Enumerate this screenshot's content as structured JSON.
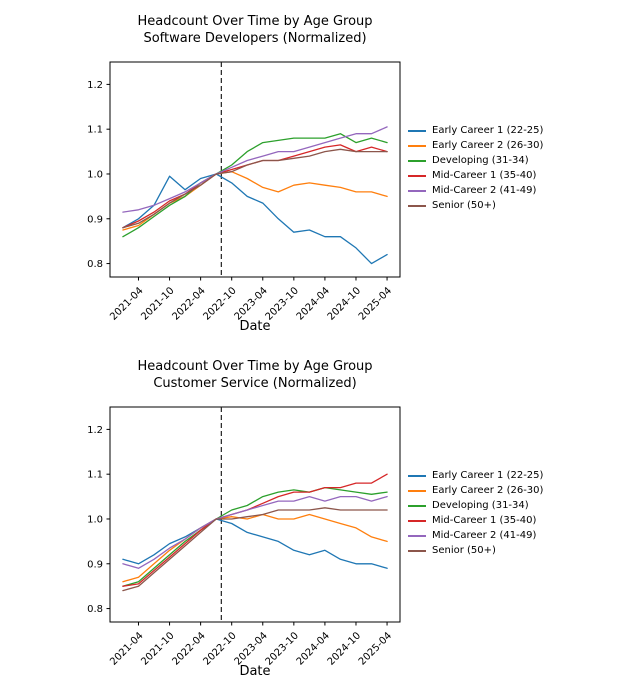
{
  "chart_data": [
    {
      "type": "line",
      "title_line1": "Headcount Over Time by Age Group",
      "title_line2": "Software Developers (Normalized)",
      "xlabel": "Date",
      "ylabel": "",
      "ylim": [
        0.77,
        1.25
      ],
      "yticks": [
        0.8,
        0.9,
        1.0,
        1.1,
        1.2
      ],
      "xtick_labels": [
        "2021-04",
        "2021-10",
        "2022-04",
        "2022-10",
        "2023-04",
        "2023-10",
        "2024-04",
        "2024-10",
        "2025-04"
      ],
      "xtick_months": [
        3,
        9,
        15,
        21,
        27,
        33,
        39,
        45,
        51
      ],
      "x_months": [
        0,
        3,
        6,
        9,
        12,
        15,
        18,
        21,
        24,
        27,
        30,
        33,
        36,
        39,
        42,
        45,
        48,
        51
      ],
      "xlim_months": [
        -2.5,
        53.5
      ],
      "vline_month": 19,
      "vline_style": "dashed",
      "grid": false,
      "legend_position": "right-outside",
      "series": [
        {
          "name": "Early Career 1 (22-25)",
          "color": "#1f77b4",
          "values": [
            0.88,
            0.9,
            0.93,
            0.995,
            0.965,
            0.99,
            1.0,
            0.98,
            0.95,
            0.935,
            0.9,
            0.87,
            0.875,
            0.86,
            0.86,
            0.835,
            0.8,
            0.82
          ]
        },
        {
          "name": "Early Career 2 (26-30)",
          "color": "#ff7f0e",
          "values": [
            0.875,
            0.885,
            0.91,
            0.935,
            0.95,
            0.975,
            1.0,
            1.005,
            0.99,
            0.97,
            0.96,
            0.975,
            0.98,
            0.975,
            0.97,
            0.96,
            0.96,
            0.95
          ]
        },
        {
          "name": "Developing (31-34)",
          "color": "#2ca02c",
          "values": [
            0.86,
            0.88,
            0.905,
            0.93,
            0.95,
            0.98,
            1.0,
            1.02,
            1.05,
            1.07,
            1.075,
            1.08,
            1.08,
            1.08,
            1.09,
            1.07,
            1.08,
            1.07
          ]
        },
        {
          "name": "Mid-Career 1 (35-40)",
          "color": "#d62728",
          "values": [
            0.88,
            0.895,
            0.915,
            0.94,
            0.955,
            0.98,
            1.0,
            1.01,
            1.02,
            1.03,
            1.03,
            1.04,
            1.05,
            1.06,
            1.065,
            1.05,
            1.06,
            1.05
          ]
        },
        {
          "name": "Mid-Career 2 (41-49)",
          "color": "#9467bd",
          "values": [
            0.915,
            0.92,
            0.93,
            0.945,
            0.96,
            0.98,
            1.0,
            1.015,
            1.03,
            1.04,
            1.05,
            1.05,
            1.06,
            1.07,
            1.08,
            1.09,
            1.09,
            1.105
          ]
        },
        {
          "name": "Senior (50+)",
          "color": "#8c564b",
          "values": [
            0.88,
            0.89,
            0.91,
            0.935,
            0.955,
            0.975,
            1.0,
            1.005,
            1.02,
            1.03,
            1.03,
            1.035,
            1.04,
            1.05,
            1.055,
            1.05,
            1.05,
            1.05
          ]
        }
      ]
    },
    {
      "type": "line",
      "title_line1": "Headcount Over Time by Age Group",
      "title_line2": "Customer Service (Normalized)",
      "xlabel": "Date",
      "ylabel": "",
      "ylim": [
        0.77,
        1.25
      ],
      "yticks": [
        0.8,
        0.9,
        1.0,
        1.1,
        1.2
      ],
      "xtick_labels": [
        "2021-04",
        "2021-10",
        "2022-04",
        "2022-10",
        "2023-04",
        "2023-10",
        "2024-04",
        "2024-10",
        "2025-04"
      ],
      "xtick_months": [
        3,
        9,
        15,
        21,
        27,
        33,
        39,
        45,
        51
      ],
      "x_months": [
        0,
        3,
        6,
        9,
        12,
        15,
        18,
        21,
        24,
        27,
        30,
        33,
        36,
        39,
        42,
        45,
        48,
        51
      ],
      "xlim_months": [
        -2.5,
        53.5
      ],
      "vline_month": 19,
      "vline_style": "dashed",
      "grid": false,
      "legend_position": "right-outside",
      "series": [
        {
          "name": "Early Career 1 (22-25)",
          "color": "#1f77b4",
          "values": [
            0.91,
            0.9,
            0.92,
            0.945,
            0.96,
            0.98,
            1.0,
            0.99,
            0.97,
            0.96,
            0.95,
            0.93,
            0.92,
            0.93,
            0.91,
            0.9,
            0.9,
            0.89
          ]
        },
        {
          "name": "Early Career 2 (26-30)",
          "color": "#ff7f0e",
          "values": [
            0.86,
            0.87,
            0.9,
            0.93,
            0.955,
            0.98,
            1.0,
            1.005,
            1.0,
            1.01,
            1.0,
            1.0,
            1.01,
            1.0,
            0.99,
            0.98,
            0.96,
            0.95
          ]
        },
        {
          "name": "Developing (31-34)",
          "color": "#2ca02c",
          "values": [
            0.85,
            0.86,
            0.89,
            0.92,
            0.95,
            0.975,
            1.0,
            1.02,
            1.03,
            1.05,
            1.06,
            1.065,
            1.06,
            1.07,
            1.065,
            1.06,
            1.055,
            1.06
          ]
        },
        {
          "name": "Mid-Career 1 (35-40)",
          "color": "#d62728",
          "values": [
            0.85,
            0.855,
            0.885,
            0.915,
            0.945,
            0.975,
            1.0,
            1.01,
            1.02,
            1.035,
            1.05,
            1.06,
            1.06,
            1.07,
            1.07,
            1.08,
            1.08,
            1.1
          ]
        },
        {
          "name": "Mid-Career 2 (41-49)",
          "color": "#9467bd",
          "values": [
            0.9,
            0.89,
            0.91,
            0.935,
            0.955,
            0.98,
            1.0,
            1.01,
            1.02,
            1.03,
            1.04,
            1.04,
            1.05,
            1.04,
            1.05,
            1.05,
            1.04,
            1.05
          ]
        },
        {
          "name": "Senior (50+)",
          "color": "#8c564b",
          "values": [
            0.84,
            0.85,
            0.88,
            0.91,
            0.94,
            0.97,
            1.0,
            1.0,
            1.005,
            1.01,
            1.02,
            1.02,
            1.02,
            1.025,
            1.02,
            1.02,
            1.02,
            1.02
          ]
        }
      ]
    }
  ]
}
